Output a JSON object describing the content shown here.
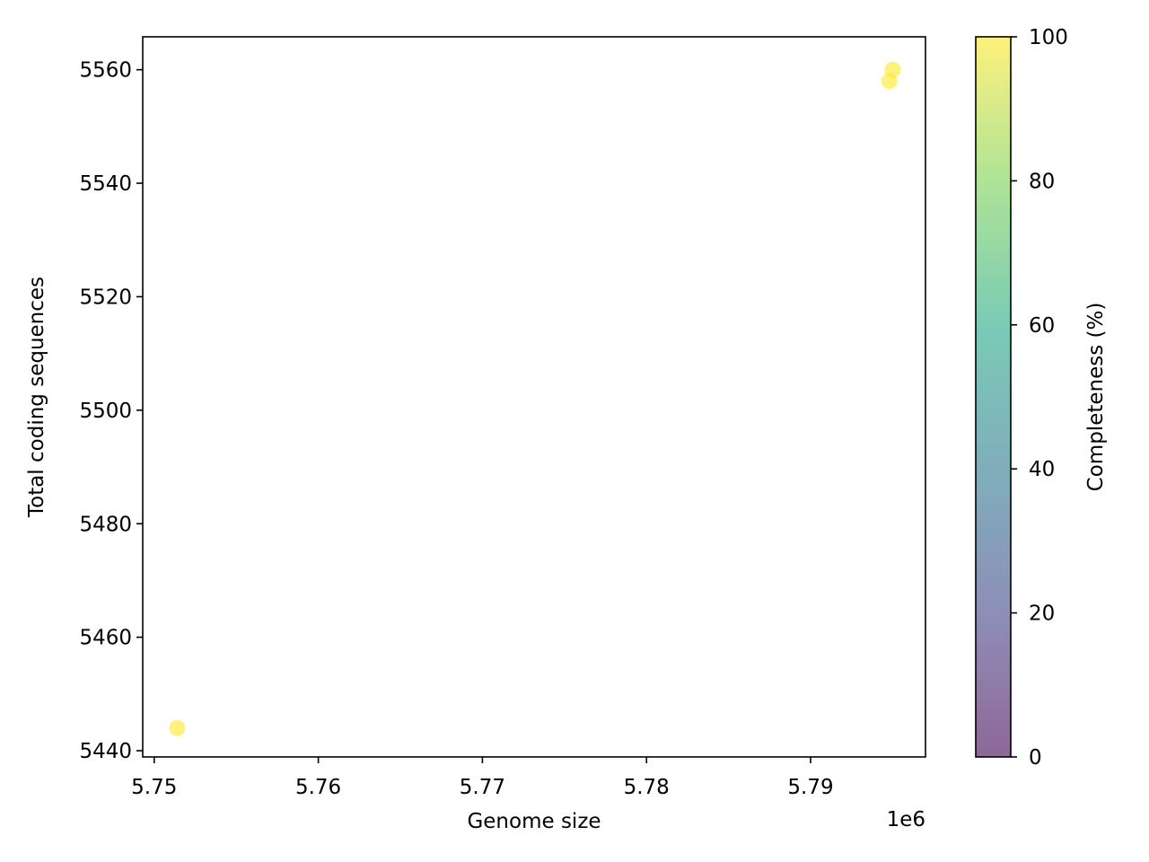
{
  "chart_data": {
    "type": "scatter",
    "title": "",
    "xlabel": "Genome size",
    "ylabel": "Total coding sequences",
    "x_offset_label": "1e6",
    "x_scale": 1000000,
    "xlim": [
      5749300,
      5797000
    ],
    "ylim": [
      5438.9,
      5565.8
    ],
    "x_ticks": [
      5750000,
      5760000,
      5770000,
      5780000,
      5790000
    ],
    "x_tick_labels": [
      "5.75",
      "5.76",
      "5.77",
      "5.78",
      "5.79"
    ],
    "y_ticks": [
      5440,
      5460,
      5480,
      5500,
      5520,
      5540,
      5560
    ],
    "y_tick_labels": [
      "5440",
      "5460",
      "5480",
      "5500",
      "5520",
      "5540",
      "5560"
    ],
    "grid": false,
    "points": [
      {
        "x": 5751400,
        "y": 5444,
        "completeness": 100
      },
      {
        "x": 5794800,
        "y": 5558,
        "completeness": 100
      },
      {
        "x": 5795000,
        "y": 5560,
        "completeness": 100
      }
    ],
    "colorbar": {
      "label": "Completeness (%)",
      "min": 0,
      "max": 100,
      "ticks": [
        0,
        20,
        40,
        60,
        80,
        100
      ],
      "tick_labels": [
        "0",
        "20",
        "40",
        "60",
        "80",
        "100"
      ],
      "colormap": "viridis",
      "alpha": 0.6,
      "stops": [
        "#440154",
        "#414487",
        "#2a788e",
        "#22a884",
        "#7ad151",
        "#fde725"
      ]
    }
  }
}
